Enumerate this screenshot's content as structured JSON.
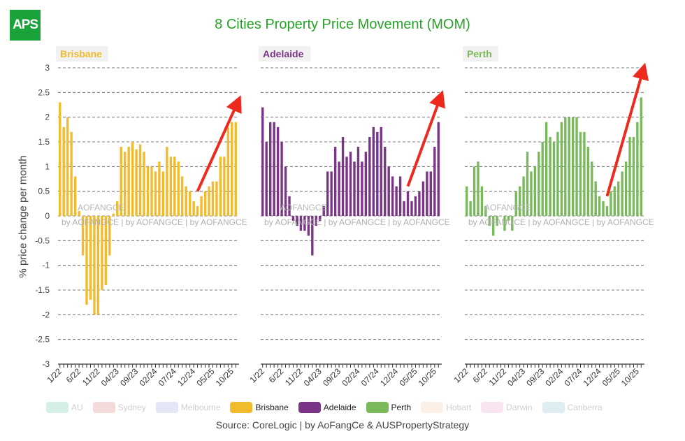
{
  "header": {
    "logo": "APS",
    "title": "8 Cities Property Price Movement (MOM)"
  },
  "footer": {
    "source": "Source: CoreLogic | by AoFangCe & AUSPropertyStrategy"
  },
  "watermark": "AOFANGCE",
  "watermark_line": "by AOFANGCE | by AOFANGCE | by AOFANGCE",
  "legend": [
    {
      "label": "AU",
      "color": "#43b98a",
      "active": false
    },
    {
      "label": "Sydney",
      "color": "#d2605c",
      "active": false
    },
    {
      "label": "Melbourne",
      "color": "#7a8bd0",
      "active": false
    },
    {
      "label": "Brisbane",
      "color": "#f1bb2b",
      "active": true
    },
    {
      "label": "Adelaide",
      "color": "#7b3587",
      "active": true
    },
    {
      "label": "Perth",
      "color": "#79b95b",
      "active": true
    },
    {
      "label": "Hobart",
      "color": "#f2b98c",
      "active": false
    },
    {
      "label": "Darwin",
      "color": "#e48bc3",
      "active": false
    },
    {
      "label": "Canberra",
      "color": "#6fb0b8",
      "active": false
    }
  ],
  "chart_data": {
    "type": "bar",
    "title": "8 Cities Property Price Movement (MOM)",
    "ylabel": "% price change per month",
    "ylim": [
      -3,
      3
    ],
    "yticks": [
      "3",
      "2.5",
      "2",
      "1.5",
      "1",
      "0.5",
      "0",
      "-0.5",
      "-1",
      "-1.5",
      "-2",
      "-2.5",
      "-3"
    ],
    "ytick_values": [
      3,
      2.5,
      2,
      1.5,
      1,
      0.5,
      0,
      -0.5,
      -1,
      -1.5,
      -2,
      -2.5,
      -3
    ],
    "x_tick_labels": [
      "1/22",
      "6/22",
      "11/22",
      "04/23",
      "09/23",
      "02/24",
      "07/24",
      "12/24",
      "05/25",
      "10/25"
    ],
    "x_tick_months_index": [
      0,
      5,
      10,
      15,
      20,
      25,
      30,
      35,
      40,
      45
    ],
    "months": 47,
    "series": [
      {
        "name": "Brisbane",
        "color": "#f1bb2b",
        "label_bg": "#f1f1f1",
        "values": [
          2.3,
          1.8,
          2.0,
          1.7,
          0.8,
          0.1,
          -0.8,
          -1.8,
          -1.7,
          -2.0,
          -2.0,
          -1.5,
          -1.4,
          -0.8,
          0.05,
          0.3,
          1.4,
          1.3,
          1.4,
          1.5,
          1.35,
          1.45,
          1.3,
          1.0,
          1.0,
          0.9,
          1.1,
          0.9,
          1.4,
          1.2,
          1.2,
          1.1,
          0.8,
          0.6,
          0.5,
          0.3,
          0.2,
          0.4,
          0.5,
          0.6,
          0.7,
          0.7,
          1.2,
          1.2,
          1.8,
          1.9,
          1.9
        ],
        "arrow": {
          "from_month": 36,
          "from_value": 0.5,
          "to_month": 46.5,
          "to_value": 2.3
        }
      },
      {
        "name": "Adelaide",
        "color": "#7b3587",
        "label_bg": "#f1f1f1",
        "values": [
          2.2,
          1.5,
          1.9,
          1.9,
          1.8,
          1.5,
          1.0,
          0.4,
          -0.1,
          -0.2,
          -0.3,
          -0.3,
          -0.4,
          -0.8,
          -0.2,
          -0.1,
          0.2,
          0.9,
          0.9,
          1.4,
          1.1,
          1.6,
          1.2,
          1.3,
          1.1,
          1.4,
          1.1,
          1.3,
          1.6,
          1.8,
          1.7,
          1.8,
          1.4,
          1.0,
          0.8,
          0.6,
          0.8,
          0.3,
          0.5,
          0.3,
          0.4,
          0.5,
          0.7,
          0.9,
          0.9,
          1.4,
          1.9
        ],
        "arrow": {
          "from_month": 38,
          "from_value": 0.6,
          "to_month": 46.5,
          "to_value": 2.4
        }
      },
      {
        "name": "Perth",
        "color": "#79b95b",
        "label_bg": "#f1f1f1",
        "values": [
          0.6,
          0.3,
          1.0,
          1.1,
          0.6,
          0.2,
          -0.2,
          -0.4,
          -0.2,
          0.0,
          -0.3,
          -0.1,
          -0.3,
          0.5,
          0.6,
          0.8,
          1.3,
          0.9,
          1.0,
          1.3,
          1.5,
          1.9,
          1.6,
          1.5,
          1.7,
          1.9,
          2.0,
          2.0,
          2.0,
          2.0,
          1.7,
          1.7,
          1.4,
          1.1,
          0.7,
          0.4,
          0.3,
          0.2,
          0.5,
          0.6,
          0.7,
          0.9,
          1.1,
          1.6,
          1.6,
          1.9,
          2.4
        ],
        "arrow": {
          "from_month": 37,
          "from_value": 0.4,
          "to_month": 46.5,
          "to_value": 2.95
        }
      }
    ]
  }
}
